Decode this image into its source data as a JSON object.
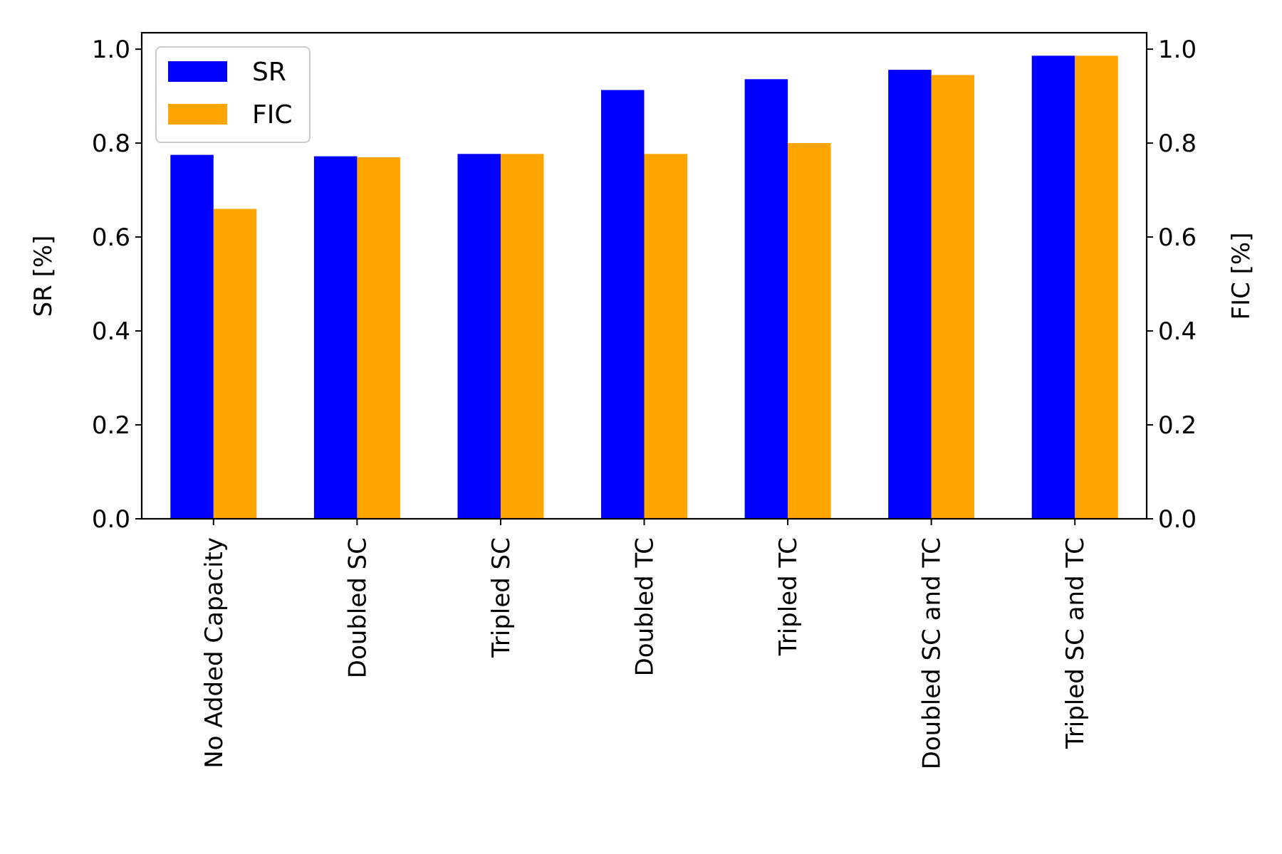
{
  "chart_data": {
    "type": "bar",
    "categories": [
      "No Added Capacity",
      "Doubled SC",
      "Tripled SC",
      "Doubled TC",
      "Tripled TC",
      "Doubled SC and TC",
      "Tripled SC and TC"
    ],
    "series": [
      {
        "name": "SR",
        "axis": "left",
        "color": "#0000ff",
        "values": [
          0.775,
          0.772,
          0.777,
          0.913,
          0.936,
          0.956,
          0.986
        ]
      },
      {
        "name": "FIC",
        "axis": "right",
        "color": "#ffa500",
        "values": [
          0.66,
          0.77,
          0.777,
          0.777,
          0.8,
          0.945,
          0.986
        ]
      }
    ],
    "ylabel_left": "SR [%]",
    "ylabel_right": "FIC [%]",
    "ylim_left": [
      0,
      1.035
    ],
    "ylim_right": [
      0,
      1.035
    ],
    "yticks": [
      "0.0",
      "0.2",
      "0.4",
      "0.6",
      "0.8",
      "1.0"
    ],
    "grid": false,
    "legend_position": "top-left"
  }
}
